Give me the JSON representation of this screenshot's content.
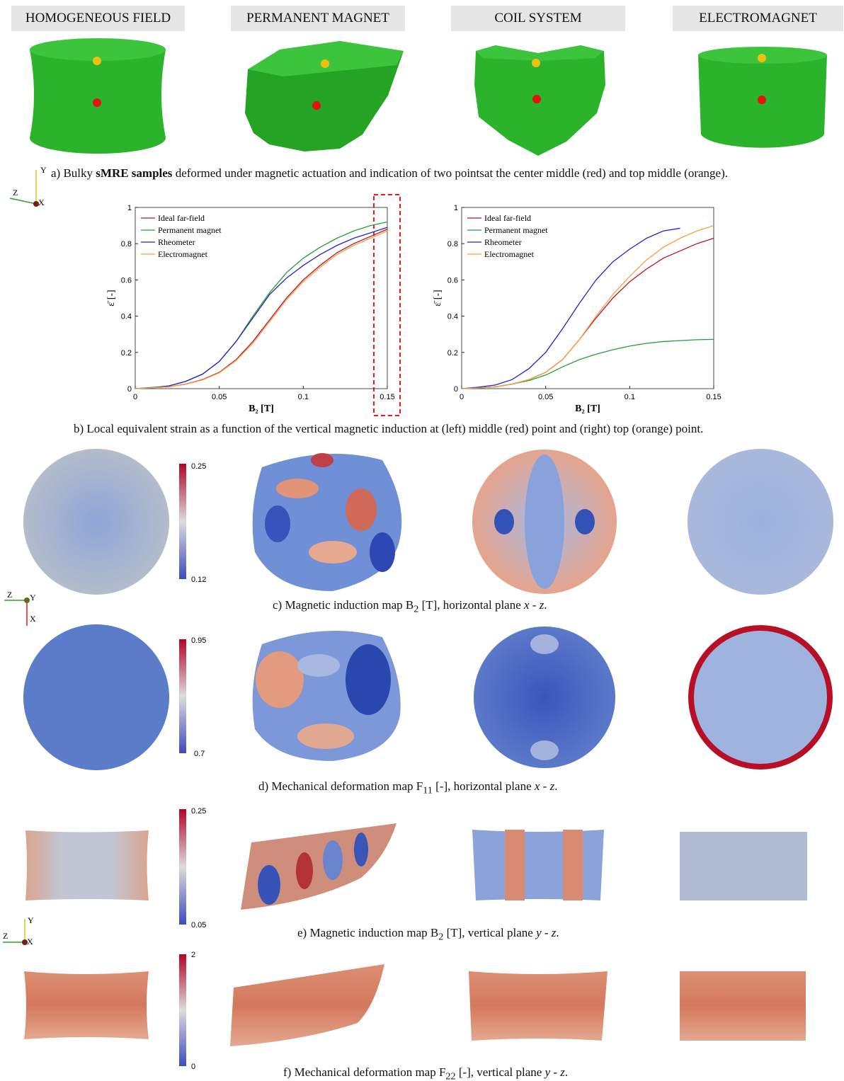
{
  "headers": [
    "HOMOGENEOUS FIELD",
    "PERMANENT MAGNET",
    "COIL SYSTEM",
    "ELECTROMAGNET"
  ],
  "triads": [
    [
      "Y",
      "Z",
      "X"
    ],
    [
      "Z",
      "Y",
      "X"
    ],
    [
      "Y",
      "Z",
      "X"
    ]
  ],
  "captions": {
    "a": [
      "a) Bulky ",
      "sMRE samples",
      " deformed under magnetic actuation and indication of two pointsat the center middle (red) and top middle (orange)."
    ],
    "b": [
      "b) Local equivalent strain as a function of the vertical magnetic induction at (left) middle (red) point and (right) top (orange) point."
    ],
    "c": [
      "c) Magnetic induction map B",
      "2",
      " [T], horizontal plane ",
      "x - z",
      "."
    ],
    "d": [
      "d) Mechanical deformation map F",
      "11",
      " [-], horizontal plane ",
      "x - z",
      "."
    ],
    "e": [
      "e) Magnetic induction map B",
      "2",
      " [T], vertical plane ",
      "y - z",
      "."
    ],
    "f": [
      "f) Mechanical deformation map F",
      "22",
      " [-], vertical plane ",
      "y - z",
      "."
    ]
  },
  "colorbars": [
    {
      "max": 0.25,
      "min": 0.12
    },
    {
      "max": 0.95,
      "min": 0.7
    },
    {
      "max": 0.25,
      "min": 0.05
    },
    {
      "max": 2,
      "min": 0
    }
  ],
  "chart_data": [
    {
      "type": "line",
      "xlabel": "B₂ [T]",
      "ylabel": "ε̄ [-]",
      "x": [
        0,
        0.01,
        0.02,
        0.03,
        0.04,
        0.05,
        0.06,
        0.07,
        0.08,
        0.09,
        0.1,
        0.11,
        0.12,
        0.13,
        0.14,
        0.15
      ],
      "xlim": [
        0,
        0.15
      ],
      "xticks": [
        0,
        0.05,
        0.1,
        0.15
      ],
      "ylim": [
        0,
        1
      ],
      "yticks": [
        0,
        0.2,
        0.4,
        0.6,
        0.8,
        1
      ],
      "legend": "upper left",
      "series": [
        {
          "name": "Ideal far-field",
          "color": "#b5162b",
          "values": [
            0,
            0.005,
            0.01,
            0.025,
            0.05,
            0.09,
            0.16,
            0.26,
            0.38,
            0.5,
            0.6,
            0.68,
            0.75,
            0.8,
            0.84,
            0.88
          ]
        },
        {
          "name": "Permanent magnet",
          "color": "#22a03a",
          "values": [
            0,
            0.006,
            0.015,
            0.04,
            0.08,
            0.15,
            0.26,
            0.4,
            0.53,
            0.64,
            0.72,
            0.78,
            0.83,
            0.87,
            0.9,
            0.92
          ]
        },
        {
          "name": "Rheometer",
          "color": "#2424c4",
          "values": [
            0,
            0.006,
            0.015,
            0.04,
            0.08,
            0.15,
            0.26,
            0.39,
            0.52,
            0.61,
            0.68,
            0.74,
            0.79,
            0.83,
            0.86,
            0.89
          ]
        },
        {
          "name": "Electromagnet",
          "color": "#f5a042",
          "values": [
            0,
            0.005,
            0.01,
            0.024,
            0.048,
            0.087,
            0.155,
            0.25,
            0.37,
            0.49,
            0.59,
            0.67,
            0.74,
            0.79,
            0.83,
            0.87
          ]
        }
      ]
    },
    {
      "type": "line",
      "xlabel": "B₂ [T]",
      "ylabel": "ε̄ [-]",
      "x": [
        0,
        0.01,
        0.02,
        0.03,
        0.04,
        0.05,
        0.06,
        0.07,
        0.08,
        0.09,
        0.1,
        0.11,
        0.12,
        0.13,
        0.14,
        0.15
      ],
      "xlim": [
        0,
        0.15
      ],
      "xticks": [
        0,
        0.05,
        0.1,
        0.15
      ],
      "ylim": [
        0,
        1
      ],
      "yticks": [
        0,
        0.2,
        0.4,
        0.6,
        0.8,
        1
      ],
      "legend": "upper left",
      "series": [
        {
          "name": "Ideal far-field",
          "color": "#b5162b",
          "values": [
            0,
            0.004,
            0.01,
            0.025,
            0.05,
            0.09,
            0.16,
            0.27,
            0.39,
            0.5,
            0.59,
            0.66,
            0.72,
            0.76,
            0.8,
            0.83
          ]
        },
        {
          "name": "Permanent magnet",
          "color": "#22a03a",
          "values": [
            0,
            0.004,
            0.01,
            0.025,
            0.045,
            0.075,
            0.12,
            0.16,
            0.19,
            0.215,
            0.235,
            0.25,
            0.26,
            0.265,
            0.27,
            0.272
          ]
        },
        {
          "name": "Rheometer",
          "color": "#2424c4",
          "values": [
            0,
            0.008,
            0.02,
            0.05,
            0.11,
            0.2,
            0.33,
            0.47,
            0.6,
            0.7,
            0.77,
            0.83,
            0.87,
            0.885,
            null,
            null
          ]
        },
        {
          "name": "Electromagnet",
          "color": "#f5a042",
          "values": [
            0,
            0.004,
            0.01,
            0.025,
            0.05,
            0.09,
            0.16,
            0.27,
            0.4,
            0.52,
            0.62,
            0.71,
            0.78,
            0.83,
            0.87,
            0.9
          ]
        }
      ]
    }
  ]
}
